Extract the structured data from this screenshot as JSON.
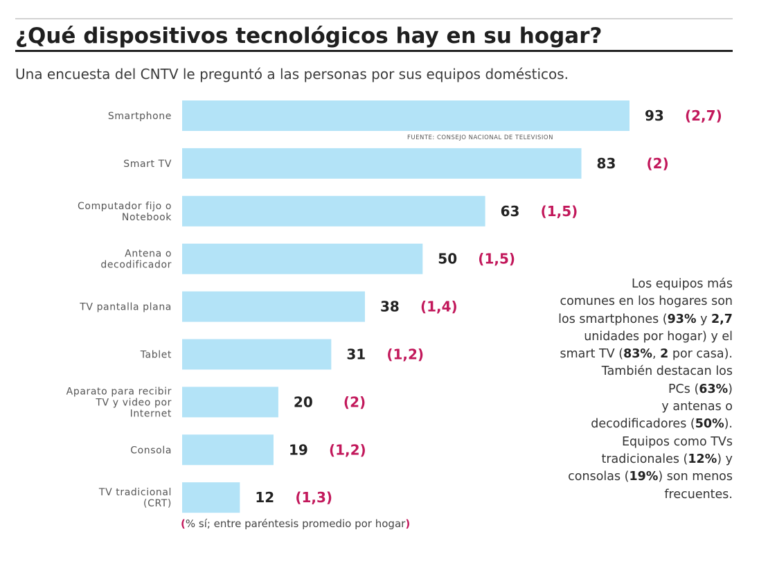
{
  "header": {
    "title": "¿Qué dispositivos tecnológicos hay en su hogar?",
    "subtitle": "Una encuesta del CNTV le preguntó a las personas por sus equipos domésticos."
  },
  "source": "FUENTE: CONSEJO NACIONAL DE TELEVISION",
  "colors": {
    "bar": "#b3e3f7",
    "average": "#c2185b",
    "value": "#222222"
  },
  "chart_data": {
    "type": "bar",
    "orientation": "horizontal",
    "title": "¿Qué dispositivos tecnológicos hay en su hogar?",
    "categories": [
      [
        "Smartphone"
      ],
      [
        "Smart TV"
      ],
      [
        "Computador fijo o",
        "Notebook"
      ],
      [
        "Antena o",
        "decodificador"
      ],
      [
        "TV pantalla plana"
      ],
      [
        "Tablet"
      ],
      [
        "Aparato para recibir",
        "TV y video por",
        "Internet"
      ],
      [
        "Consola"
      ],
      [
        "TV tradicional",
        "(CRT)"
      ]
    ],
    "series": [
      {
        "values": [
          93,
          83,
          63,
          50,
          38,
          31,
          20,
          19,
          12
        ],
        "labels": [
          "93",
          "83",
          "63",
          "50",
          "38",
          "31",
          "20",
          "19",
          "12"
        ]
      },
      {
        "values": [
          2.7,
          2,
          1.5,
          1.5,
          1.4,
          1.2,
          2,
          1.2,
          1.3
        ],
        "labels": [
          "(2,7)",
          "(2)",
          "(1,5)",
          "(1,5)",
          "(1,4)",
          "(1,2)",
          "(2)",
          "(1,2)",
          "(1,3)"
        ]
      }
    ],
    "xlim": [
      0,
      93
    ],
    "grid": false,
    "legend": "none"
  },
  "annotation": {
    "lines": [
      [
        {
          "t": "Los equipos más",
          "b": false
        }
      ],
      [
        {
          "t": "comunes en los hogares son",
          "b": false
        }
      ],
      [
        {
          "t": "los smartphones (",
          "b": false
        },
        {
          "t": "93%",
          "b": true
        },
        {
          "t": " y ",
          "b": false
        },
        {
          "t": "2,7",
          "b": true
        }
      ],
      [
        {
          "t": "unidades por hogar) y el",
          "b": false
        }
      ],
      [
        {
          "t": "smart TV (",
          "b": false
        },
        {
          "t": "83%",
          "b": true
        },
        {
          "t": ", ",
          "b": false
        },
        {
          "t": "2",
          "b": true
        },
        {
          "t": " por casa).",
          "b": false
        }
      ],
      [
        {
          "t": "También destacan los",
          "b": false
        }
      ],
      [
        {
          "t": "PCs (",
          "b": false
        },
        {
          "t": "63%",
          "b": true
        },
        {
          "t": ")",
          "b": false
        }
      ],
      [
        {
          "t": "y antenas o",
          "b": false
        }
      ],
      [
        {
          "t": "decodificadores (",
          "b": false
        },
        {
          "t": "50%",
          "b": true
        },
        {
          "t": ").",
          "b": false
        }
      ],
      [
        {
          "t": "Equipos como TVs",
          "b": false
        }
      ],
      [
        {
          "t": "tradicionales (",
          "b": false
        },
        {
          "t": "12%",
          "b": true
        },
        {
          "t": ") y",
          "b": false
        }
      ],
      [
        {
          "t": "consolas (",
          "b": false
        },
        {
          "t": "19%",
          "b": true
        },
        {
          "t": ") son menos",
          "b": false
        }
      ],
      [
        {
          "t": "frecuentes.",
          "b": false
        }
      ]
    ]
  },
  "footnote": {
    "open": "(",
    "text": "% sí; entre paréntesis promedio por hogar",
    "close": ")"
  }
}
